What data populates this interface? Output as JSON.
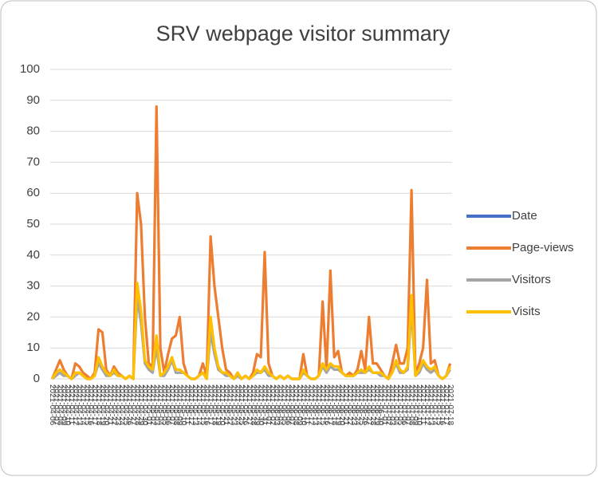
{
  "chart_data": {
    "type": "line",
    "title": "SRV webpage visitor summary",
    "categories": [
      "2021-04-06",
      "2021-04-07",
      "2021-04-08",
      "2021-04-09",
      "2021-04-10",
      "2021-04-11",
      "2021-04-12",
      "2021-04-13",
      "2021-04-14",
      "2021-04-15",
      "2021-04-16",
      "2021-04-17",
      "2021-04-18",
      "2021-04-19",
      "2021-04-20",
      "2021-04-21",
      "2021-04-22",
      "2021-04-23",
      "2021-04-24",
      "2021-04-25",
      "2021-04-26",
      "2021-04-27",
      "2021-04-28",
      "2021-04-29",
      "2021-04-30",
      "2021-05-01",
      "2021-05-02",
      "2021-05-03",
      "2021-05-04",
      "2021-05-05",
      "2021-05-06",
      "2021-05-07",
      "2021-05-08",
      "2021-05-09",
      "2021-05-10",
      "2021-05-11",
      "2021-05-12",
      "2021-05-13",
      "2021-05-14",
      "2021-05-15",
      "2021-05-16",
      "2021-05-17",
      "2021-05-18",
      "2021-05-19",
      "2021-05-20",
      "2021-05-21",
      "2021-05-22",
      "2021-05-23",
      "2021-05-24",
      "2021-05-25",
      "2021-05-26",
      "2021-05-27",
      "2021-05-28",
      "2021-05-29",
      "2021-05-30",
      "2021-05-31",
      "2021-06-01",
      "2021-06-02",
      "2021-06-03",
      "2021-06-04",
      "2021-06-05",
      "2021-06-06",
      "2021-06-07",
      "2021-06-08",
      "2021-06-09",
      "2021-06-10",
      "2021-06-11",
      "2021-06-12",
      "2021-06-13",
      "2021-06-14",
      "2021-06-15",
      "2021-06-16",
      "2021-06-17",
      "2021-06-18",
      "2021-06-19",
      "2021-06-20",
      "2021-06-21",
      "2021-06-22",
      "2021-06-23",
      "2021-06-24",
      "2021-06-25",
      "2021-06-26",
      "2021-06-27",
      "2021-06-28",
      "2021-06-29",
      "2021-06-30",
      "2021-07-01",
      "2021-07-02",
      "2021-07-03",
      "2021-07-04",
      "2021-07-05",
      "2021-07-06",
      "2021-07-07",
      "2021-07-08",
      "2021-07-09",
      "2021-07-10",
      "2021-07-11",
      "2021-07-12",
      "2021-07-13",
      "2021-07-14",
      "2021-07-15",
      "2021-07-16",
      "2021-07-17",
      "2021-07-18"
    ],
    "series": [
      {
        "name": "Date",
        "color": "#4472c4",
        "values": [
          null,
          null,
          null,
          null,
          null,
          null,
          null,
          null,
          null,
          null,
          null,
          null,
          null,
          null,
          null,
          null,
          null,
          null,
          null,
          null,
          null,
          null,
          null,
          null,
          null,
          null,
          null,
          null,
          null,
          null,
          null,
          null,
          null,
          null,
          null,
          null,
          null,
          null,
          null,
          null,
          null,
          null,
          null,
          null,
          null,
          null,
          null,
          null,
          null,
          null,
          null,
          null,
          null,
          null,
          null,
          null,
          null,
          null,
          null,
          null,
          null,
          null,
          null,
          null,
          null,
          null,
          null,
          null,
          null,
          null,
          null,
          null,
          null,
          null,
          null,
          null,
          null,
          null,
          null,
          null,
          null,
          null,
          null,
          null,
          null,
          null,
          null,
          null,
          null,
          null,
          null,
          null,
          null,
          null,
          null,
          null,
          null,
          null,
          null,
          null,
          null,
          null,
          null,
          null
        ]
      },
      {
        "name": "Page-views",
        "color": "#ed7d31",
        "values": [
          0,
          3,
          6,
          3,
          1,
          0,
          5,
          4,
          2,
          1,
          0,
          2,
          16,
          15,
          3,
          1,
          4,
          2,
          1,
          0,
          1,
          0,
          60,
          50,
          20,
          5,
          4,
          88,
          10,
          2,
          8,
          13,
          14,
          20,
          5,
          1,
          0,
          0,
          1,
          5,
          1,
          46,
          30,
          20,
          10,
          3,
          2,
          0,
          2,
          0,
          1,
          0,
          2,
          8,
          7,
          41,
          5,
          1,
          0,
          1,
          0,
          1,
          0,
          0,
          0,
          8,
          1,
          0,
          0,
          1,
          25,
          3,
          35,
          7,
          9,
          2,
          1,
          2,
          1,
          3,
          9,
          3,
          20,
          5,
          5,
          3,
          1,
          0,
          5,
          11,
          5,
          5,
          10,
          61,
          2,
          5,
          10,
          32,
          5,
          6,
          1,
          0,
          1,
          5
        ]
      },
      {
        "name": "Visitors",
        "color": "#a5a5a5",
        "values": [
          0,
          1,
          2,
          1,
          1,
          0,
          1,
          2,
          1,
          0,
          0,
          1,
          5,
          3,
          1,
          1,
          2,
          1,
          1,
          0,
          1,
          0,
          26,
          18,
          5,
          3,
          2,
          10,
          1,
          1,
          3,
          6,
          2,
          2,
          2,
          1,
          0,
          0,
          1,
          2,
          0,
          15,
          8,
          3,
          2,
          1,
          1,
          0,
          1,
          0,
          1,
          0,
          1,
          2,
          2,
          3,
          1,
          1,
          0,
          1,
          0,
          1,
          0,
          0,
          0,
          2,
          1,
          0,
          0,
          1,
          4,
          2,
          4,
          3,
          3,
          2,
          1,
          1,
          1,
          2,
          2,
          2,
          3,
          2,
          2,
          1,
          1,
          0,
          2,
          5,
          2,
          2,
          3,
          23,
          1,
          2,
          5,
          3,
          2,
          3,
          1,
          0,
          1,
          3
        ]
      },
      {
        "name": "Visits",
        "color": "#ffc000",
        "values": [
          0,
          2,
          3,
          2,
          1,
          0,
          2,
          2,
          1,
          0,
          0,
          1,
          7,
          4,
          2,
          1,
          3,
          1,
          1,
          0,
          1,
          0,
          31,
          22,
          6,
          4,
          3,
          14,
          1,
          2,
          4,
          7,
          3,
          3,
          2,
          1,
          0,
          0,
          1,
          2,
          0,
          20,
          10,
          4,
          2,
          2,
          1,
          0,
          2,
          0,
          1,
          0,
          1,
          3,
          2,
          4,
          2,
          1,
          0,
          1,
          0,
          1,
          0,
          0,
          0,
          3,
          1,
          0,
          0,
          1,
          5,
          3,
          5,
          4,
          4,
          2,
          1,
          1,
          1,
          2,
          3,
          2,
          4,
          2,
          2,
          2,
          1,
          0,
          2,
          6,
          3,
          2,
          4,
          27,
          1,
          3,
          6,
          4,
          3,
          4,
          1,
          0,
          1,
          4
        ]
      }
    ],
    "ylim": [
      0,
      100
    ],
    "yticks": [
      0,
      10,
      20,
      30,
      40,
      50,
      60,
      70,
      80,
      90,
      100
    ],
    "grid": true,
    "legend": "right"
  }
}
